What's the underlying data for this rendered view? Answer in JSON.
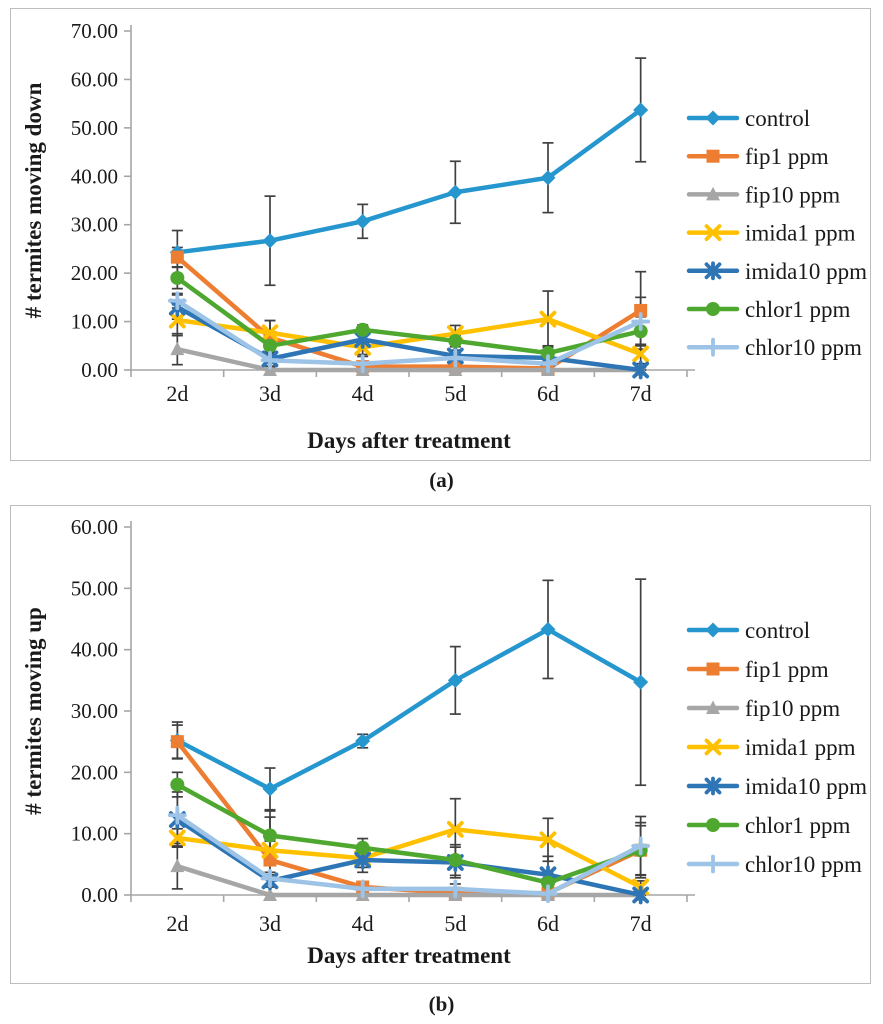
{
  "captions": {
    "a": "(a)",
    "b": "(b)"
  },
  "style": {
    "axis_color": "#a6a6a6",
    "error_bar_color": "#404040",
    "text_color": "#1a1a1a",
    "panel_border_color": "#bdbdbd"
  },
  "chart_data": [
    {
      "id": "a",
      "type": "line",
      "title": "",
      "xlabel": "Days after treatment",
      "ylabel": "# termites moving down",
      "categories": [
        "2d",
        "3d",
        "4d",
        "5d",
        "6d",
        "7d"
      ],
      "ylim": [
        0,
        70
      ],
      "ytick_step": 10,
      "ytick_labels": [
        "0.00",
        "10.00",
        "20.00",
        "30.00",
        "40.00",
        "50.00",
        "60.00",
        "70.00"
      ],
      "grid": false,
      "legend_position": "right",
      "series": [
        {
          "name": "control",
          "color": "#2696ce",
          "marker": "diamond",
          "values": [
            24.3,
            26.7,
            30.7,
            36.7,
            39.7,
            53.7
          ],
          "errors": [
            4.5,
            9.2,
            3.5,
            6.4,
            7.2,
            10.7
          ]
        },
        {
          "name": "fip1 ppm",
          "color": "#ed7d31",
          "marker": "square",
          "values": [
            23.3,
            6.7,
            0.7,
            0.7,
            0.3,
            12.3
          ],
          "errors": [
            2.0,
            3.5,
            0.5,
            0.5,
            0.5,
            8.0
          ]
        },
        {
          "name": "fip10 ppm",
          "color": "#a6a6a6",
          "marker": "triangle",
          "values": [
            4.3,
            0.0,
            0.0,
            0.0,
            0.0,
            0.0
          ],
          "errors": [
            3.2,
            0.3,
            0,
            0,
            0,
            0
          ]
        },
        {
          "name": "imida1 ppm",
          "color": "#ffc000",
          "marker": "x",
          "values": [
            10.3,
            7.7,
            4.7,
            7.5,
            10.5,
            3.3
          ],
          "errors": [
            3.2,
            2.5,
            1.5,
            1.7,
            5.8,
            2.0
          ]
        },
        {
          "name": "imida10 ppm",
          "color": "#2e75b6",
          "marker": "asterisk",
          "values": [
            13.0,
            2.3,
            6.3,
            2.9,
            2.5,
            0.0
          ],
          "errors": [
            2.5,
            1.5,
            1.5,
            1.2,
            1.5,
            0.5
          ]
        },
        {
          "name": "chlor1 ppm",
          "color": "#4ea72e",
          "marker": "circle",
          "values": [
            19.0,
            5.0,
            8.3,
            6.0,
            3.5,
            8.0
          ],
          "errors": [
            2.2,
            1.5,
            1.0,
            1.2,
            1.5,
            3.0
          ]
        },
        {
          "name": "chlor10 ppm",
          "color": "#9dc3e6",
          "marker": "plus",
          "values": [
            14.3,
            2.0,
            1.3,
            2.5,
            1.3,
            10.0
          ],
          "errors": [
            1.5,
            1.3,
            1.5,
            1.0,
            1.0,
            5.0
          ]
        }
      ]
    },
    {
      "id": "b",
      "type": "line",
      "title": "",
      "xlabel": "Days after treatment",
      "ylabel": "# termites moving up",
      "categories": [
        "2d",
        "3d",
        "4d",
        "5d",
        "6d",
        "7d"
      ],
      "ylim": [
        0,
        60
      ],
      "ytick_step": 10,
      "ytick_labels": [
        "0.00",
        "10.00",
        "20.00",
        "30.00",
        "40.00",
        "50.00",
        "60.00"
      ],
      "grid": false,
      "legend_position": "right",
      "series": [
        {
          "name": "control",
          "color": "#2696ce",
          "marker": "diamond",
          "values": [
            25.2,
            17.3,
            25.1,
            35.0,
            43.3,
            34.7
          ],
          "errors": [
            3.0,
            3.4,
            1.1,
            5.5,
            8.0,
            16.8
          ]
        },
        {
          "name": "fip1 ppm",
          "color": "#ed7d31",
          "marker": "square",
          "values": [
            25.0,
            5.7,
            1.3,
            0.3,
            0.3,
            7.3
          ],
          "errors": [
            2.7,
            7.0,
            0.8,
            0.3,
            0.3,
            4.5
          ]
        },
        {
          "name": "fip10 ppm",
          "color": "#a6a6a6",
          "marker": "triangle",
          "values": [
            4.7,
            0.0,
            0.0,
            0.0,
            0.0,
            0.0
          ],
          "errors": [
            3.7,
            0.2,
            0,
            0,
            0,
            0
          ]
        },
        {
          "name": "imida1 ppm",
          "color": "#ffc000",
          "marker": "x",
          "values": [
            9.3,
            7.3,
            6.0,
            10.7,
            9.0,
            1.3
          ],
          "errors": [
            1.5,
            1.5,
            1.5,
            5.0,
            3.5,
            1.0
          ]
        },
        {
          "name": "imida10 ppm",
          "color": "#2e75b6",
          "marker": "asterisk",
          "values": [
            12.3,
            2.3,
            5.7,
            5.3,
            3.3,
            0.0
          ],
          "errors": [
            4.5,
            1.0,
            2.0,
            2.5,
            3.0,
            0.5
          ]
        },
        {
          "name": "chlor1 ppm",
          "color": "#4ea72e",
          "marker": "circle",
          "values": [
            18.0,
            9.7,
            7.7,
            5.7,
            2.0,
            7.3
          ],
          "errors": [
            2.0,
            4.0,
            1.5,
            2.5,
            1.5,
            4.0
          ]
        },
        {
          "name": "chlor10 ppm",
          "color": "#9dc3e6",
          "marker": "plus",
          "values": [
            13.0,
            2.7,
            1.0,
            1.0,
            0.2,
            8.0
          ],
          "errors": [
            5.0,
            1.0,
            0.8,
            0.8,
            0.3,
            4.8
          ]
        }
      ]
    }
  ]
}
